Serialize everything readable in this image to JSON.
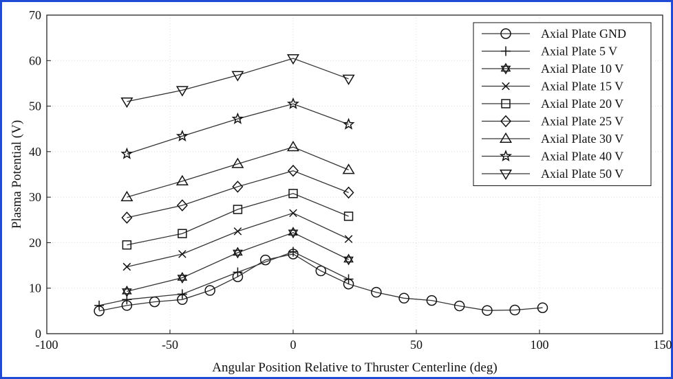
{
  "chart_data": {
    "type": "line",
    "xlabel": "Angular Position Relative to Thruster Centerline (deg)",
    "ylabel": "Plasma Potential (V)",
    "xlim": [
      -100,
      150
    ],
    "ylim": [
      0,
      70
    ],
    "xticks": [
      -100,
      -50,
      0,
      50,
      100,
      150
    ],
    "yticks": [
      0,
      10,
      20,
      30,
      40,
      50,
      60,
      70
    ],
    "grid": true,
    "legend_position": "top-right",
    "series": [
      {
        "name": "Axial Plate GND",
        "marker": "circle",
        "x": [
          -78.75,
          -67.5,
          -56.25,
          -45,
          -33.75,
          -22.5,
          -11.25,
          0,
          11.25,
          22.5,
          33.75,
          45,
          56.25,
          67.5,
          78.75,
          90,
          101.25
        ],
        "y": [
          5.0,
          6.2,
          7.0,
          7.5,
          9.5,
          12.5,
          16.2,
          17.5,
          13.8,
          10.9,
          9.1,
          7.8,
          7.3,
          6.1,
          5.1,
          5.2,
          5.7
        ]
      },
      {
        "name": "Axial Plate 5 V",
        "marker": "plus",
        "x": [
          -78.75,
          -67.5,
          -45,
          -22.5,
          0,
          22.5
        ],
        "y": [
          6.2,
          7.5,
          8.7,
          13.5,
          18.0,
          12.0
        ]
      },
      {
        "name": "Axial Plate 10 V",
        "marker": "hexagram",
        "x": [
          -67.5,
          -45,
          -22.5,
          0,
          22.5
        ],
        "y": [
          9.3,
          12.3,
          17.8,
          22.2,
          16.3
        ]
      },
      {
        "name": "Axial Plate 15 V",
        "marker": "x",
        "x": [
          -67.5,
          -45,
          -22.5,
          0,
          22.5
        ],
        "y": [
          14.7,
          17.5,
          22.5,
          26.5,
          20.8
        ]
      },
      {
        "name": "Axial Plate 20 V",
        "marker": "square",
        "x": [
          -67.5,
          -45,
          -22.5,
          0,
          22.5
        ],
        "y": [
          19.5,
          22.0,
          27.3,
          30.8,
          25.8
        ]
      },
      {
        "name": "Axial Plate 25 V",
        "marker": "diamond",
        "x": [
          -67.5,
          -45,
          -22.5,
          0,
          22.5
        ],
        "y": [
          25.5,
          28.2,
          32.3,
          35.8,
          31.0
        ]
      },
      {
        "name": "Axial Plate 30 V",
        "marker": "triangle-up",
        "x": [
          -67.5,
          -45,
          -22.5,
          0,
          22.5
        ],
        "y": [
          30.0,
          33.5,
          37.3,
          41.0,
          36.0
        ]
      },
      {
        "name": "Axial Plate 40 V",
        "marker": "star",
        "x": [
          -67.5,
          -45,
          -22.5,
          0,
          22.5
        ],
        "y": [
          39.5,
          43.4,
          47.2,
          50.5,
          46.0
        ]
      },
      {
        "name": "Axial Plate 50 V",
        "marker": "triangle-down",
        "x": [
          -67.5,
          -45,
          -22.5,
          0,
          22.5
        ],
        "y": [
          51.0,
          53.5,
          56.8,
          60.5,
          56.0
        ]
      }
    ]
  }
}
